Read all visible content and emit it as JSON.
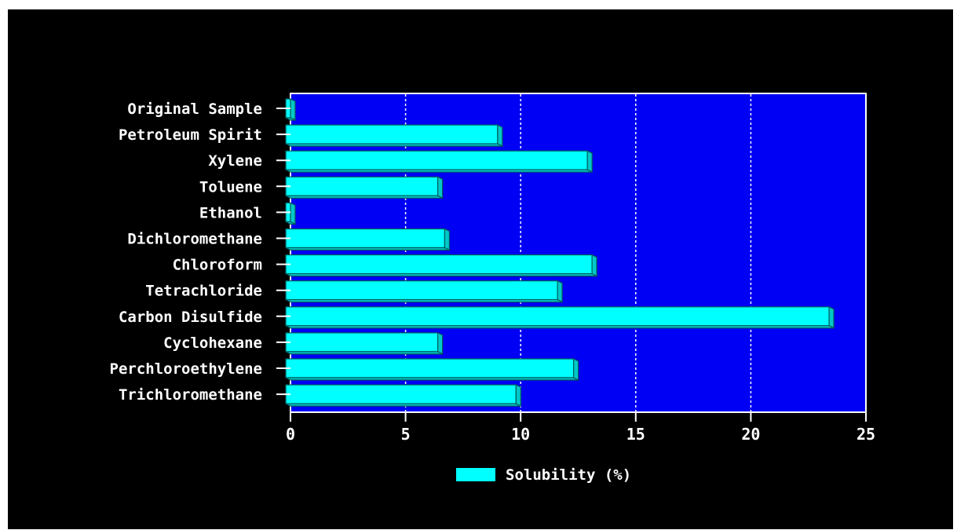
{
  "chart_data": {
    "type": "bar",
    "orientation": "horizontal",
    "categories": [
      "Original Sample",
      "Petroleum Spirit",
      "Xylene",
      "Toluene",
      "Ethanol",
      "Dichloromethane",
      "Chloroform",
      "Tetrachloride",
      "Carbon Disulfide",
      "Cyclohexane",
      "Perchloroethylene",
      "Trichloromethane"
    ],
    "series": [
      {
        "name": "Solubility (%)",
        "values": [
          0.0,
          9.0,
          12.9,
          6.4,
          0.0,
          6.7,
          13.1,
          11.6,
          23.4,
          6.4,
          12.3,
          9.8
        ]
      }
    ],
    "xlim": [
      0,
      25
    ],
    "xticks": [
      "0",
      "5",
      "10",
      "15",
      "20",
      "25"
    ],
    "grid": "vertical-dotted",
    "legend": "bottom-center",
    "title": "",
    "xlabel": "",
    "ylabel": ""
  },
  "colors": {
    "background": "#000000",
    "plot_area": "#0000f5",
    "bar_face": "#00ffff",
    "bar_side": "#00c8c8",
    "bar_outline": "#005a5a",
    "text": "#ffffff",
    "grid": "#ffffff"
  }
}
